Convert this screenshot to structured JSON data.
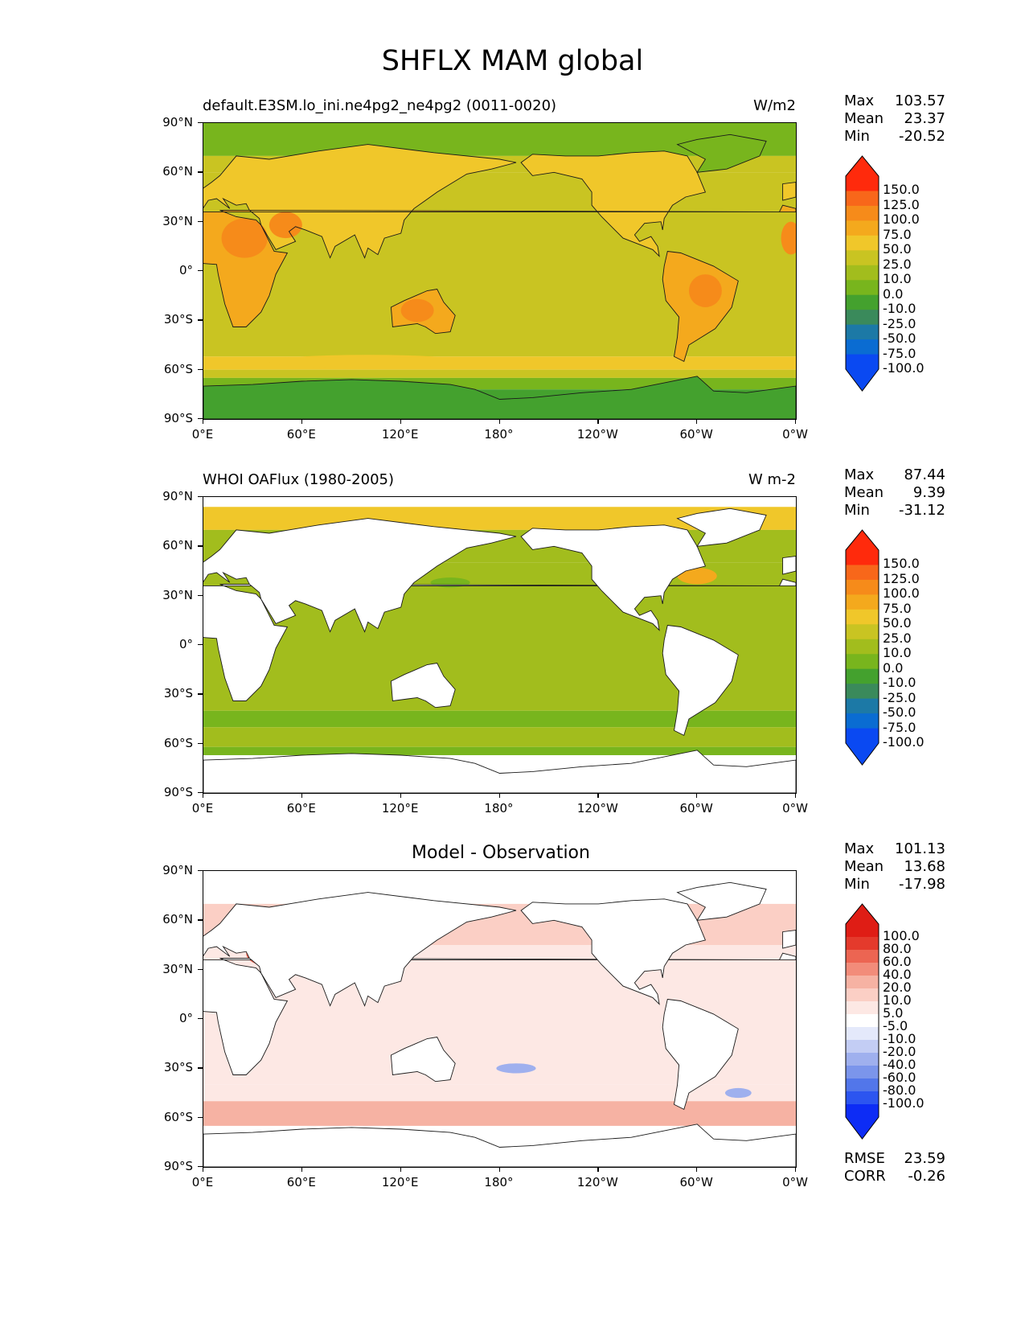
{
  "figure": {
    "title": "SHFLX MAM global"
  },
  "colors": {
    "abs_levels": [
      "#0a49f2",
      "#0a6cd2",
      "#1c79a6",
      "#3a8a5b",
      "#44a12e",
      "#78b51d",
      "#a2bd1d",
      "#c9c422",
      "#f0c72a",
      "#f4a91d",
      "#f68b1a",
      "#f8671a",
      "#ff2a0c"
    ],
    "diff_levels": [
      "#0d2cf5",
      "#2c55f0",
      "#5276ea",
      "#7b95eb",
      "#9fb0ee",
      "#c3cdf4",
      "#e4e9fb",
      "#ffffff",
      "#fde8e4",
      "#fbcfc5",
      "#f6b2a3",
      "#f28c7a",
      "#ec6552",
      "#e43a2c",
      "#df1d15"
    ]
  },
  "panels": [
    {
      "title_left": "default.E3SM.lo_ini.ne4pg2_ne4pg2 (0011-0020)",
      "title_right": "W/m2",
      "title_center": "",
      "stats": {
        "max_label": "Max",
        "max": "103.57",
        "mean_label": "Mean",
        "mean": "23.37",
        "min_label": "Min",
        "min": "-20.52"
      }
    },
    {
      "title_left": "WHOI OAFlux (1980-2005)",
      "title_right": "W m-2",
      "title_center": "",
      "stats": {
        "max_label": "Max",
        "max": "87.44",
        "mean_label": "Mean",
        "mean": "9.39",
        "min_label": "Min",
        "min": "-31.12"
      }
    },
    {
      "title_left": "",
      "title_right": "",
      "title_center": "Model - Observation",
      "stats": {
        "max_label": "Max",
        "max": "101.13",
        "mean_label": "Mean",
        "mean": "13.68",
        "min_label": "Min",
        "min": "-17.98"
      },
      "extra": {
        "rmse_label": "RMSE",
        "rmse": "23.59",
        "corr_label": "CORR",
        "corr": "-0.26"
      }
    }
  ],
  "chart_data": [
    {
      "type": "heatmap",
      "title": "default.E3SM.lo_ini.ne4pg2_ne4pg2 (0011-0020)",
      "units": "W/m2",
      "colorbar_levels": [
        "150.0",
        "125.0",
        "100.0",
        "75.0",
        "50.0",
        "25.0",
        "10.0",
        "0.0",
        "-10.0",
        "-25.0",
        "-50.0",
        "-75.0",
        "-100.0"
      ],
      "x_ticks": [
        "0°E",
        "60°E",
        "120°E",
        "180°",
        "120°W",
        "60°W",
        "0°W"
      ],
      "y_ticks": [
        "90°N",
        "60°N",
        "30°N",
        "0°",
        "30°S",
        "60°S",
        "90°S"
      ],
      "xlim": [
        0,
        360
      ],
      "ylim": [
        -90,
        90
      ]
    },
    {
      "type": "heatmap",
      "title": "WHOI OAFlux (1980-2005)",
      "units": "W m-2",
      "colorbar_levels": [
        "150.0",
        "125.0",
        "100.0",
        "75.0",
        "50.0",
        "25.0",
        "10.0",
        "0.0",
        "-10.0",
        "-25.0",
        "-50.0",
        "-75.0",
        "-100.0"
      ],
      "x_ticks": [
        "0°E",
        "60°E",
        "120°E",
        "180°",
        "120°W",
        "60°W",
        "0°W"
      ],
      "y_ticks": [
        "90°N",
        "60°N",
        "30°N",
        "0°",
        "30°S",
        "60°S",
        "90°S"
      ],
      "xlim": [
        0,
        360
      ],
      "ylim": [
        -90,
        90
      ]
    },
    {
      "type": "heatmap",
      "title": "Model - Observation",
      "colorbar_levels": [
        "100.0",
        "80.0",
        "60.0",
        "40.0",
        "20.0",
        "10.0",
        "5.0",
        "-5.0",
        "-10.0",
        "-20.0",
        "-40.0",
        "-60.0",
        "-80.0",
        "-100.0"
      ],
      "x_ticks": [
        "0°E",
        "60°E",
        "120°E",
        "180°",
        "120°W",
        "60°W",
        "0°W"
      ],
      "y_ticks": [
        "90°N",
        "60°N",
        "30°N",
        "0°",
        "30°S",
        "60°S",
        "90°S"
      ],
      "xlim": [
        0,
        360
      ],
      "ylim": [
        -90,
        90
      ]
    }
  ]
}
